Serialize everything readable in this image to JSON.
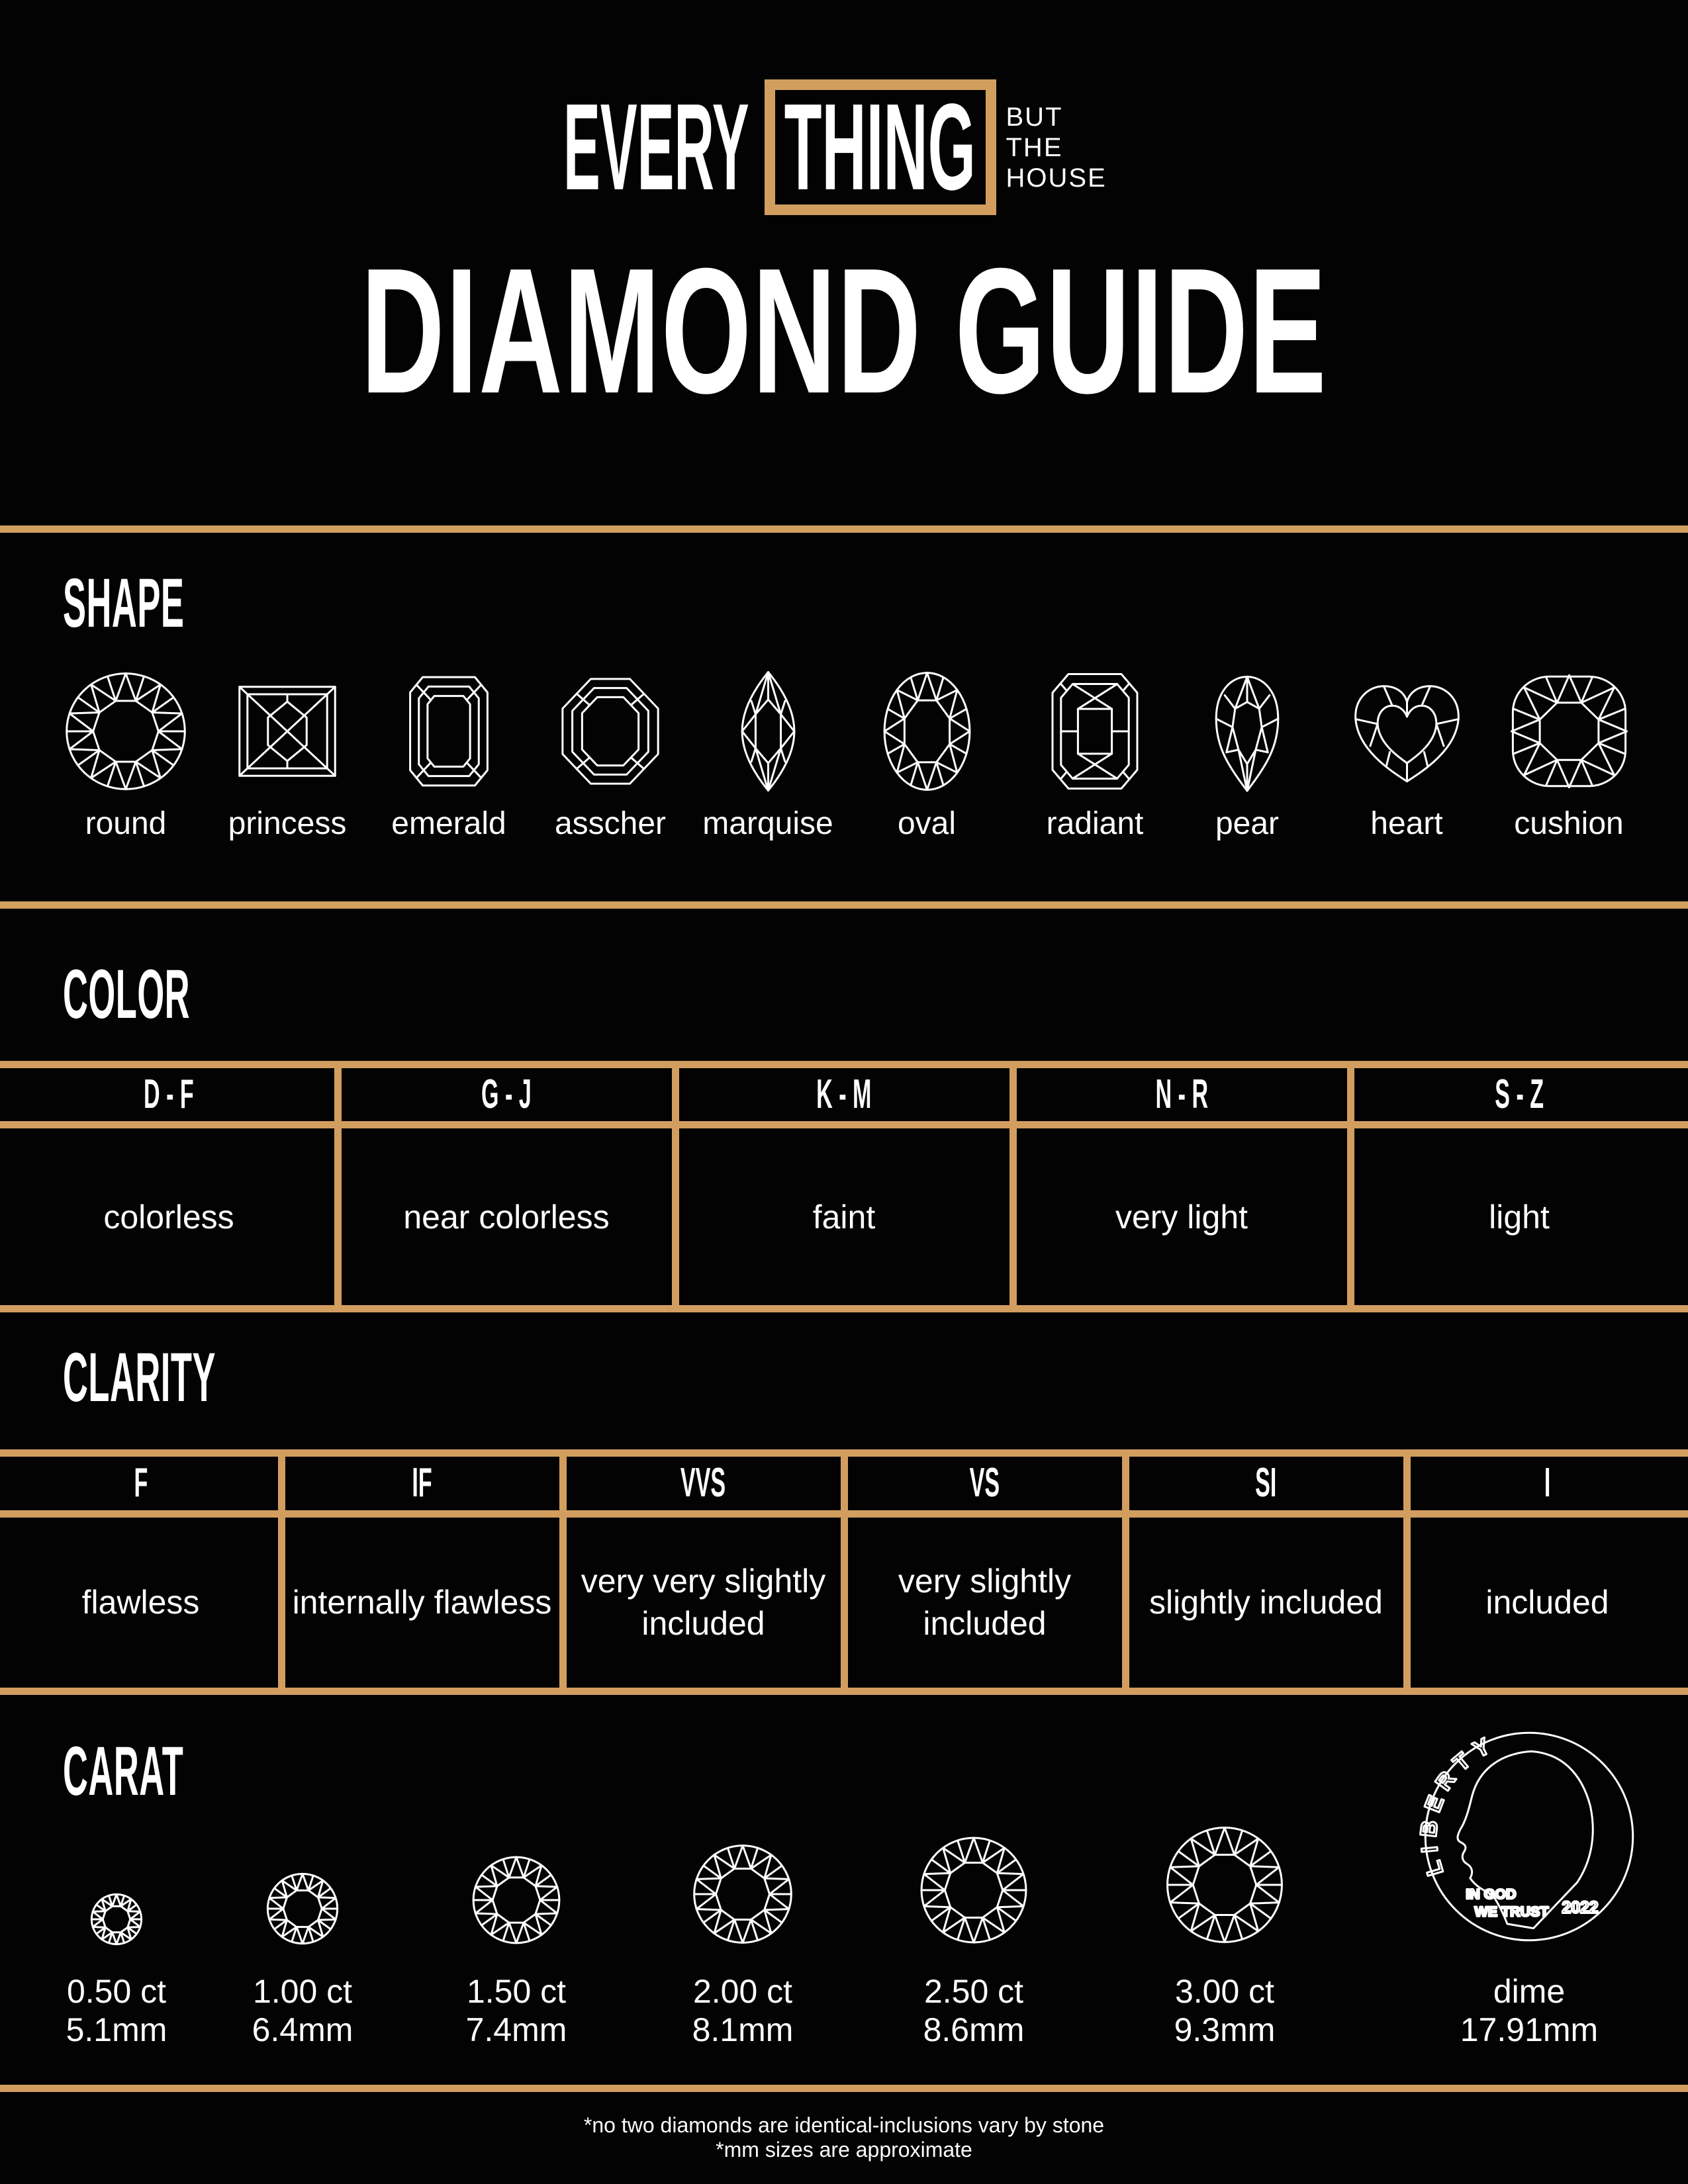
{
  "colors": {
    "background": "#030303",
    "gold": "#D29E5F",
    "text": "#FFFFFF"
  },
  "brand": {
    "word_left": "EVERY",
    "word_boxed": "THING",
    "tagline": [
      "BUT",
      "THE",
      "HOUSE"
    ]
  },
  "title": "DIAMOND GUIDE",
  "shape": {
    "heading": "SHAPE",
    "items": [
      {
        "icon": "round",
        "label": "round"
      },
      {
        "icon": "princess",
        "label": "princess"
      },
      {
        "icon": "emerald",
        "label": "emerald"
      },
      {
        "icon": "asscher",
        "label": "asscher"
      },
      {
        "icon": "marquise",
        "label": "marquise"
      },
      {
        "icon": "oval",
        "label": "oval"
      },
      {
        "icon": "radiant",
        "label": "radiant"
      },
      {
        "icon": "pear",
        "label": "pear"
      },
      {
        "icon": "heart",
        "label": "heart"
      },
      {
        "icon": "cushion",
        "label": "cushion"
      }
    ]
  },
  "color": {
    "heading": "COLOR",
    "columns": [
      {
        "grade": "D - F",
        "desc": "colorless"
      },
      {
        "grade": "G - J",
        "desc": "near colorless"
      },
      {
        "grade": "K - M",
        "desc": "faint"
      },
      {
        "grade": "N - R",
        "desc": "very light"
      },
      {
        "grade": "S - Z",
        "desc": "light"
      }
    ]
  },
  "clarity": {
    "heading": "CLARITY",
    "columns": [
      {
        "grade": "F",
        "desc": "flawless"
      },
      {
        "grade": "IF",
        "desc": "internally flawless"
      },
      {
        "grade": "VVS",
        "desc": "very very slightly included"
      },
      {
        "grade": "VS",
        "desc": "very slightly included"
      },
      {
        "grade": "SI",
        "desc": "slightly included"
      },
      {
        "grade": "I",
        "desc": "included"
      }
    ]
  },
  "carat": {
    "heading": "CARAT",
    "items": [
      {
        "ct": "0.50 ct",
        "mm": "5.1mm"
      },
      {
        "ct": "1.00 ct",
        "mm": "6.4mm"
      },
      {
        "ct": "1.50 ct",
        "mm": "7.4mm"
      },
      {
        "ct": "2.00 ct",
        "mm": "8.1mm"
      },
      {
        "ct": "2.50 ct",
        "mm": "8.6mm"
      },
      {
        "ct": "3.00 ct",
        "mm": "9.3mm"
      }
    ],
    "dime": {
      "label": "dime",
      "mm": "17.91mm",
      "liberty": "LIBERTY",
      "motto1": "IN GOD",
      "motto2": "WE TRUST",
      "year": "2022"
    }
  },
  "footnotes": [
    "*no two diamonds are identical-inclusions vary by stone",
    "*mm sizes are approximate"
  ]
}
